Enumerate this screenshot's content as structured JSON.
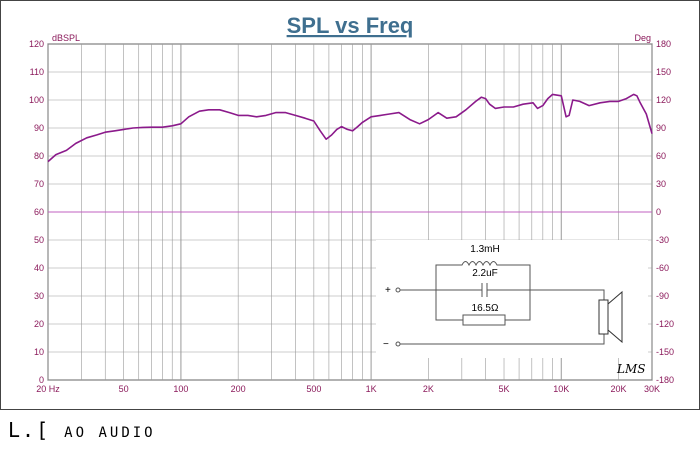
{
  "chart_data": {
    "type": "line",
    "title": "SPL vs Freq",
    "y_left_label": "dBSPL",
    "y_right_label": "Deg",
    "x_scale": "log",
    "xlim": [
      20,
      30000
    ],
    "ylim_left": [
      0,
      120
    ],
    "ylim_right": [
      -180,
      180
    ],
    "x_ticks": [
      {
        "value": 20,
        "label": "20 Hz"
      },
      {
        "value": 50,
        "label": "50"
      },
      {
        "value": 100,
        "label": "100"
      },
      {
        "value": 200,
        "label": "200"
      },
      {
        "value": 500,
        "label": "500"
      },
      {
        "value": 1000,
        "label": "1K"
      },
      {
        "value": 2000,
        "label": "2K"
      },
      {
        "value": 5000,
        "label": "5K"
      },
      {
        "value": 10000,
        "label": "10K"
      },
      {
        "value": 20000,
        "label": "20K"
      },
      {
        "value": 30000,
        "label": "30K"
      }
    ],
    "y_left_ticks": [
      0,
      10,
      20,
      30,
      40,
      50,
      60,
      70,
      80,
      90,
      100,
      110,
      120
    ],
    "y_right_ticks": [
      -180,
      -150,
      -120,
      -90,
      -60,
      -30,
      0,
      30,
      60,
      90,
      120,
      150,
      180
    ],
    "grid": true,
    "series": [
      {
        "name": "",
        "axis": "left",
        "color": "#8b1a8b",
        "x": [
          20,
          22,
          25,
          28,
          32,
          36,
          40,
          45,
          50,
          56,
          63,
          70,
          80,
          90,
          100,
          110,
          125,
          140,
          160,
          180,
          200,
          225,
          250,
          280,
          315,
          355,
          400,
          450,
          500,
          540,
          580,
          620,
          660,
          700,
          750,
          800,
          850,
          900,
          1000,
          1120,
          1250,
          1400,
          1600,
          1800,
          2000,
          2250,
          2500,
          2800,
          3150,
          3550,
          3800,
          4000,
          4200,
          4500,
          5000,
          5600,
          6300,
          7100,
          7500,
          8000,
          8500,
          9000,
          10000,
          10600,
          11000,
          11500,
          12500,
          14000,
          16000,
          18000,
          20000,
          22000,
          24000,
          25000,
          26000,
          28000,
          30000
        ],
        "values": [
          78,
          80.5,
          82,
          84.5,
          86.5,
          87.5,
          88.5,
          89,
          89.5,
          90,
          90.2,
          90.3,
          90.3,
          90.8,
          91.5,
          94,
          96,
          96.5,
          96.5,
          95.5,
          94.5,
          94.5,
          94,
          94.5,
          95.5,
          95.5,
          94.5,
          93.5,
          92.5,
          89,
          86,
          87.5,
          89.5,
          90.5,
          89.5,
          89,
          90.5,
          92,
          94,
          94.5,
          95,
          95.5,
          93,
          91.5,
          93,
          95.5,
          93.5,
          94,
          96.5,
          99.5,
          101,
          100.5,
          98.5,
          97,
          97.5,
          97.5,
          98.5,
          99,
          97,
          98,
          100.5,
          102,
          101.5,
          94,
          94.5,
          100,
          99.5,
          98,
          99,
          99.5,
          99.5,
          100.5,
          102,
          101.5,
          99,
          95,
          88
        ]
      },
      {
        "name": "",
        "axis": "right",
        "color": "#c060c0",
        "x": [
          20,
          30000
        ],
        "values": [
          0,
          0
        ]
      }
    ]
  },
  "schematic": {
    "inductor_label": "1.3mH",
    "capacitor_label": "2.2uF",
    "resistor_label": "16.5Ω",
    "plus_label": "+",
    "minus_label": "−"
  },
  "watermark": "LMS",
  "brand": {
    "big": "L.[",
    "small": "AO AUDIO"
  }
}
